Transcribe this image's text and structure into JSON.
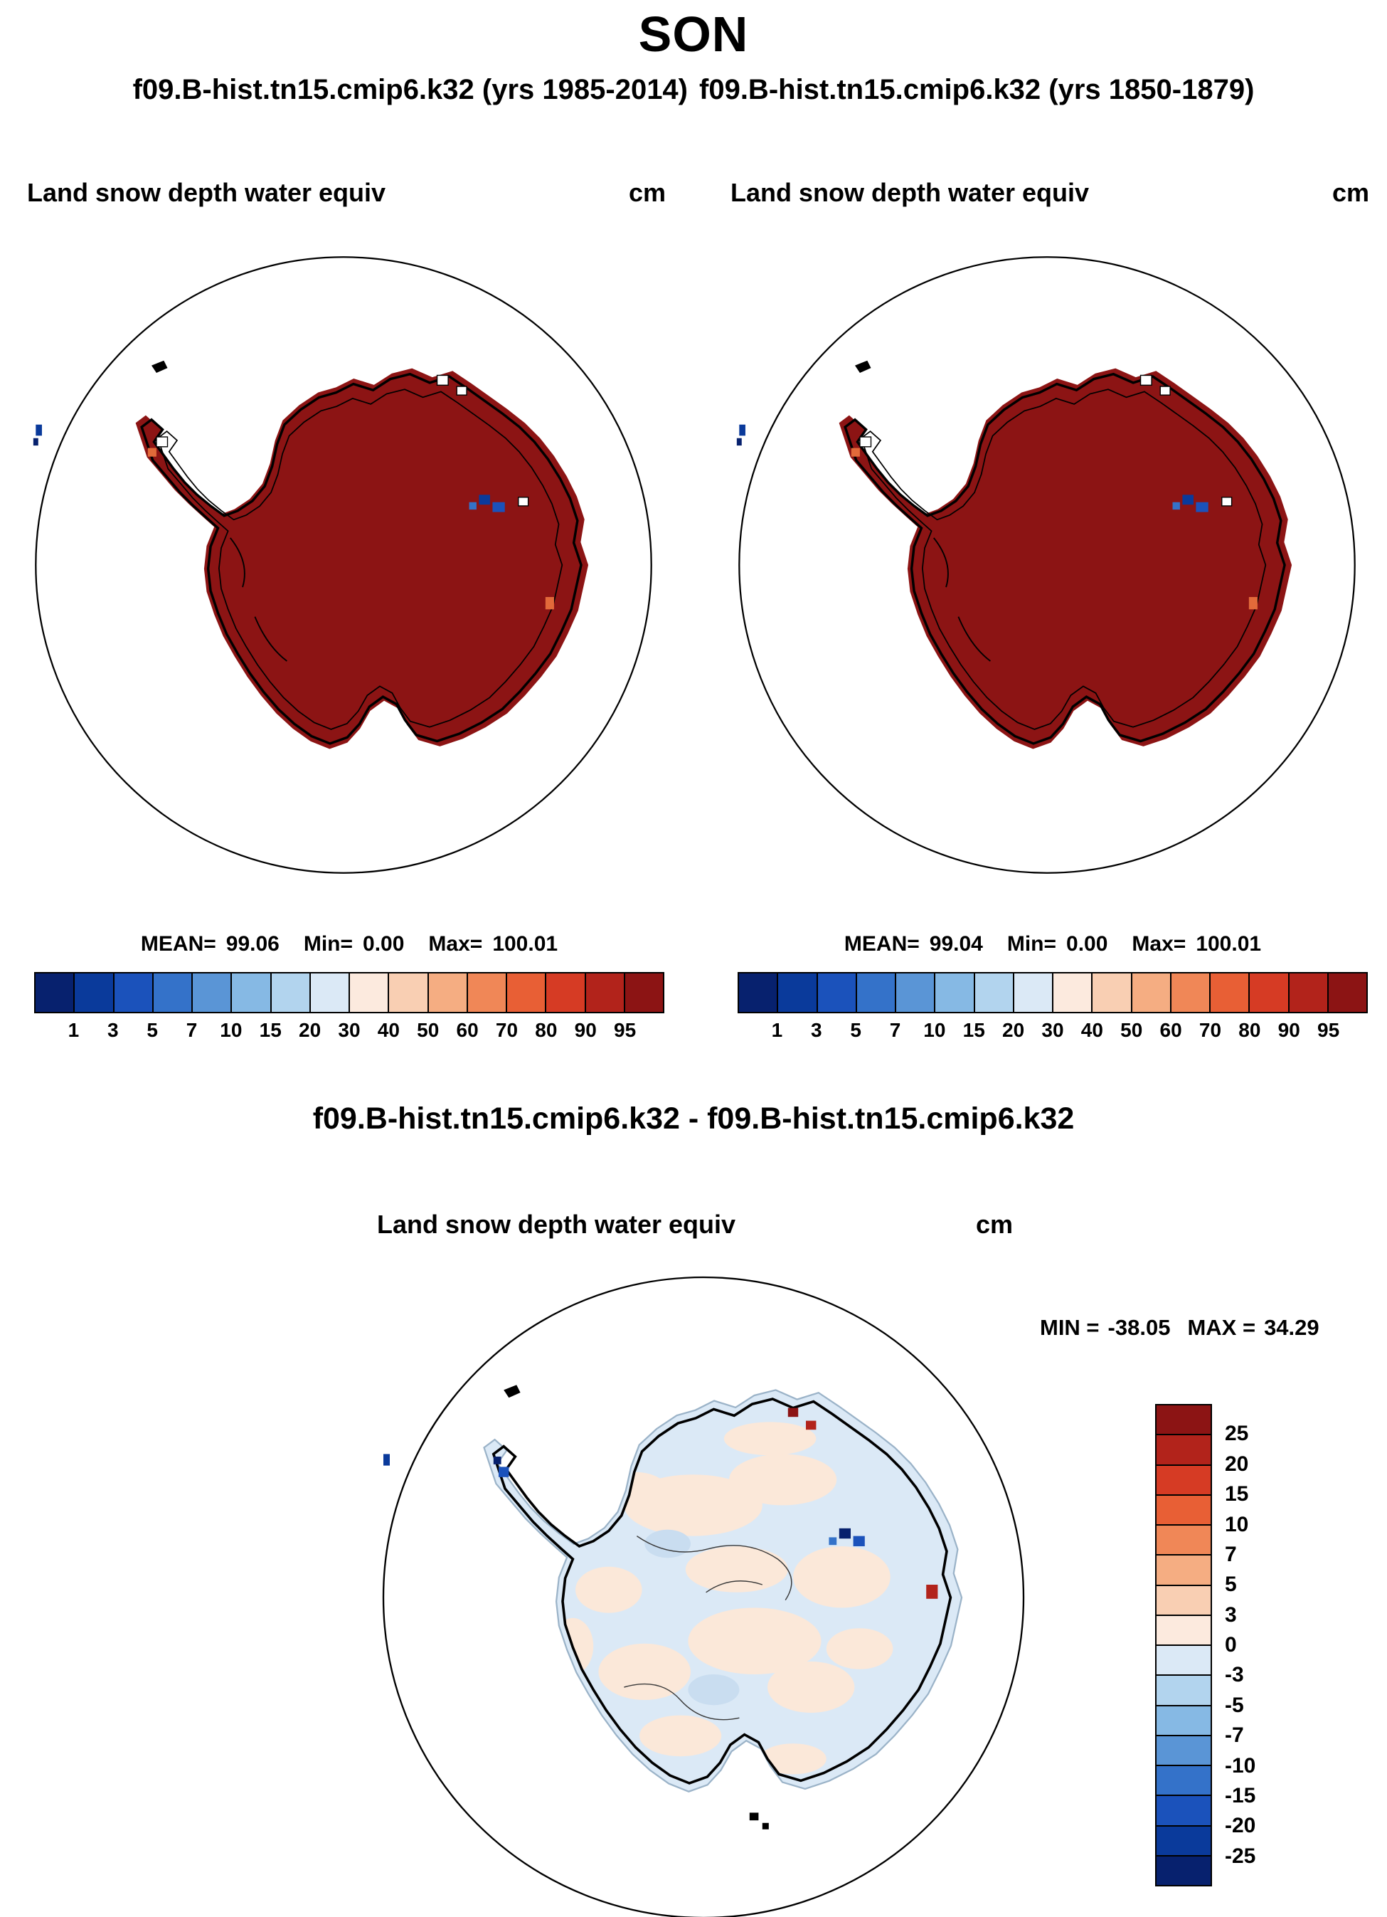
{
  "page": {
    "title": "SON",
    "subtitle_left": "f09.B-hist.tn15.cmip6.k32 (yrs 1985-2014)",
    "subtitle_right": "f09.B-hist.tn15.cmip6.k32 (yrs 1850-1879)",
    "diff_title": "f09.B-hist.tn15.cmip6.k32 - f09.B-hist.tn15.cmip6.k32"
  },
  "panels": {
    "case1": {
      "var_label": "Land snow depth water equiv",
      "units": "cm",
      "stats": {
        "mean_label": "MEAN=",
        "mean": "99.06",
        "min_label": "Min=",
        "min": "0.00",
        "max_label": "Max=",
        "max": "100.01"
      }
    },
    "case2": {
      "var_label": "Land snow depth water equiv",
      "units": "cm",
      "stats": {
        "mean_label": "MEAN=",
        "mean": "99.04",
        "min_label": "Min=",
        "min": "0.00",
        "max_label": "Max=",
        "max": "100.01"
      }
    },
    "diff": {
      "var_label": "Land snow depth water equiv",
      "units": "cm",
      "stats": {
        "min_label": "MIN =",
        "min": "-38.05",
        "max_label": "MAX =",
        "max": "34.29"
      }
    }
  },
  "colorbar_main": {
    "tick_labels": [
      "1",
      "3",
      "5",
      "7",
      "10",
      "15",
      "20",
      "30",
      "40",
      "50",
      "60",
      "70",
      "80",
      "90",
      "95"
    ],
    "colors": [
      "#07216e",
      "#0a3a9b",
      "#1b52bb",
      "#3472c9",
      "#5a95d6",
      "#86b9e4",
      "#b2d4ee",
      "#dbe9f6",
      "#fceade",
      "#f9cfb3",
      "#f5ad82",
      "#f08757",
      "#e85f35",
      "#d63b24",
      "#b2231b",
      "#8c1414"
    ]
  },
  "colorbar_diff": {
    "tick_labels": [
      "25",
      "20",
      "15",
      "10",
      "7",
      "5",
      "3",
      "0",
      "-3",
      "-5",
      "-7",
      "-10",
      "-15",
      "-20",
      "-25"
    ],
    "colors": [
      "#8c1414",
      "#b2231b",
      "#d63b24",
      "#e85f35",
      "#f08757",
      "#f5ad82",
      "#f9cfb3",
      "#fceade",
      "#dbe9f6",
      "#b2d4ee",
      "#86b9e4",
      "#5a95d6",
      "#3472c9",
      "#1b52bb",
      "#0a3a9b",
      "#07216e"
    ]
  },
  "map_colors": {
    "ocean_fill": "#ffffff",
    "coast_line": "#000000",
    "continent_fill": "#8c1414",
    "diff_base": "#dbe9f6",
    "diff_warm": "#fbe8d9"
  },
  "chart_data": [
    {
      "type": "heatmap",
      "panel": "top-left",
      "title": "Land snow depth water equiv",
      "units": "cm",
      "case": "f09.B-hist.tn15.cmip6.k32",
      "years": "1985-2014",
      "projection": "antarctic polar stereographic",
      "mean": 99.06,
      "min": 0.0,
      "max": 100.01,
      "contour_levels": [
        1,
        3,
        5,
        7,
        10,
        15,
        20,
        30,
        40,
        50,
        60,
        70,
        80,
        90,
        95
      ],
      "palette_ref": "colorbar_main",
      "legend_position": "bottom",
      "dominant_bin": "> 95"
    },
    {
      "type": "heatmap",
      "panel": "top-right",
      "title": "Land snow depth water equiv",
      "units": "cm",
      "case": "f09.B-hist.tn15.cmip6.k32",
      "years": "1850-1879",
      "projection": "antarctic polar stereographic",
      "mean": 99.04,
      "min": 0.0,
      "max": 100.01,
      "contour_levels": [
        1,
        3,
        5,
        7,
        10,
        15,
        20,
        30,
        40,
        50,
        60,
        70,
        80,
        90,
        95
      ],
      "palette_ref": "colorbar_main",
      "legend_position": "bottom",
      "dominant_bin": "> 95"
    },
    {
      "type": "heatmap",
      "panel": "bottom-difference",
      "title": "Land snow depth water equiv",
      "units": "cm",
      "case": "f09.B-hist.tn15.cmip6.k32 - f09.B-hist.tn15.cmip6.k32",
      "projection": "antarctic polar stereographic",
      "min": -38.05,
      "max": 34.29,
      "contour_levels": [
        25,
        20,
        15,
        10,
        7,
        5,
        3,
        0,
        -3,
        -5,
        -7,
        -10,
        -15,
        -20,
        -25
      ],
      "palette_ref": "colorbar_diff",
      "legend_position": "right",
      "dominant_bin": "-3 to 3"
    }
  ]
}
